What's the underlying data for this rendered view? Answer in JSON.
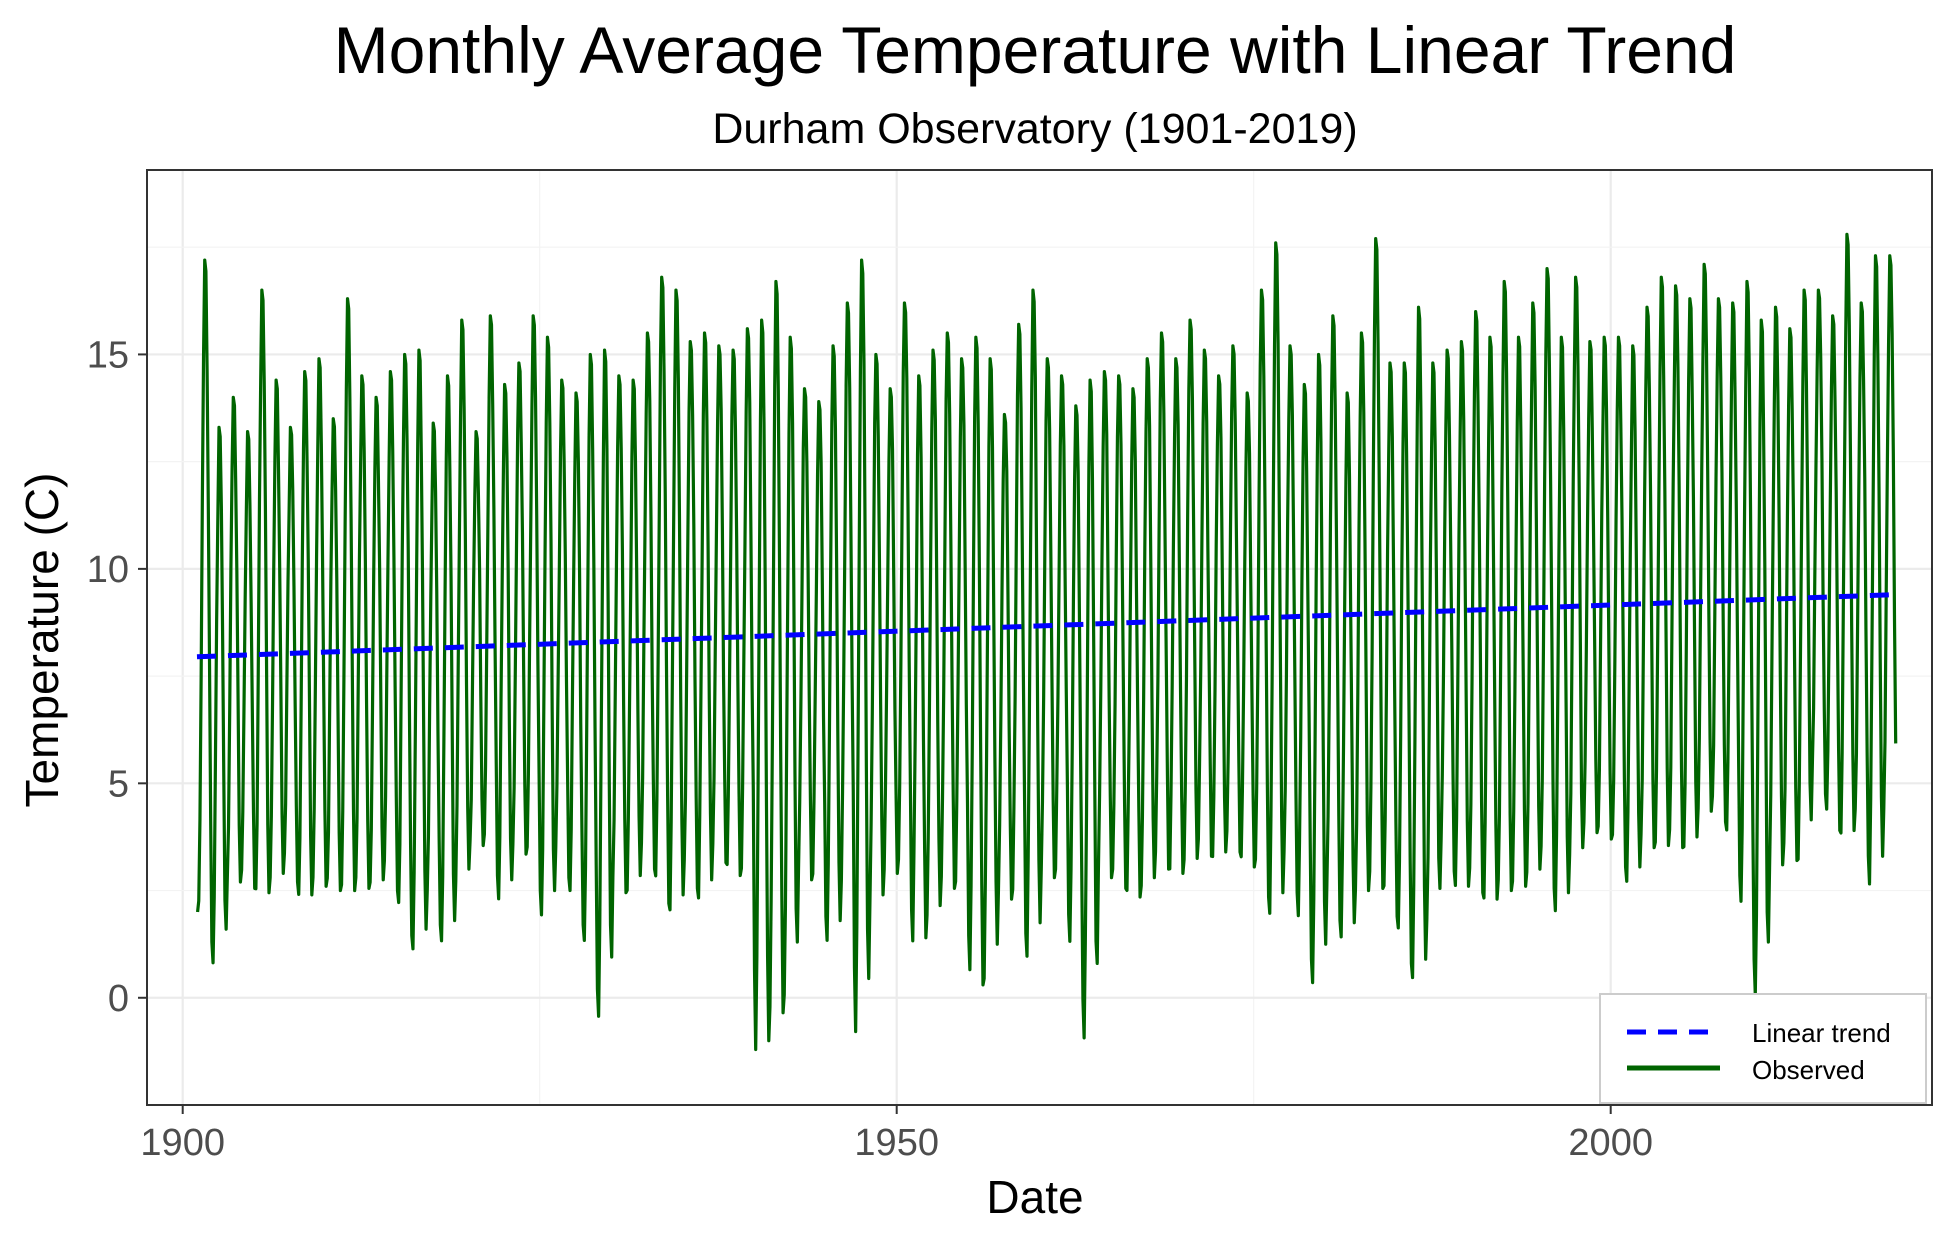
{
  "chart_data": {
    "type": "line",
    "title": "Monthly Average Temperature with Linear Trend",
    "subtitle": "Durham Observatory (1901-2019)",
    "xlabel": "Date",
    "ylabel": "Temperature (C)",
    "xlim": [
      1897.5,
      2022.5
    ],
    "ylim": [
      -2.5,
      19.3
    ],
    "x_ticks": [
      {
        "value": 1900,
        "label": "1900"
      },
      {
        "value": 1950,
        "label": "1950"
      },
      {
        "value": 2000,
        "label": "2000"
      }
    ],
    "y_ticks": [
      {
        "value": 0,
        "label": "0"
      },
      {
        "value": 5,
        "label": "5"
      },
      {
        "value": 10,
        "label": "10"
      },
      {
        "value": 15,
        "label": "15"
      }
    ],
    "grid": true,
    "legend_position": "bottom-right",
    "series": [
      {
        "name": "Linear trend",
        "color": "#0000ff",
        "style": "dashed",
        "x": [
          1901.0,
          2019.9
        ],
        "y": [
          7.95,
          9.4
        ]
      },
      {
        "name": "Observed",
        "color": "#006400",
        "style": "solid",
        "period": "monthly",
        "start": "1901-01",
        "end": "2019-12",
        "annual_extremes": [
          [
            1901,
            2.0,
            17.2
          ],
          [
            1902,
            0.6,
            13.3
          ],
          [
            1903,
            2.6,
            14.0
          ],
          [
            1904,
            2.8,
            13.2
          ],
          [
            1905,
            2.3,
            16.5
          ],
          [
            1906,
            2.6,
            14.4
          ],
          [
            1907,
            3.2,
            13.3
          ],
          [
            1908,
            2.2,
            14.6
          ],
          [
            1909,
            2.6,
            14.9
          ],
          [
            1910,
            2.6,
            13.5
          ],
          [
            1911,
            2.4,
            16.3
          ],
          [
            1912,
            2.6,
            14.5
          ],
          [
            1913,
            2.5,
            14.0
          ],
          [
            1914,
            3.0,
            14.6
          ],
          [
            1915,
            2.0,
            15.0
          ],
          [
            1916,
            0.9,
            15.1
          ],
          [
            1917,
            2.3,
            13.4
          ],
          [
            1918,
            1.1,
            14.5
          ],
          [
            1919,
            2.5,
            15.8
          ],
          [
            1920,
            3.5,
            13.2
          ],
          [
            1921,
            3.6,
            15.9
          ],
          [
            1922,
            2.1,
            14.3
          ],
          [
            1923,
            3.4,
            14.8
          ],
          [
            1924,
            3.3,
            15.9
          ],
          [
            1925,
            1.7,
            15.4
          ],
          [
            1926,
            3.3,
            14.4
          ],
          [
            1927,
            2.3,
            14.1
          ],
          [
            1928,
            1.1,
            15.0
          ],
          [
            1929,
            -0.7,
            15.1
          ],
          [
            1930,
            2.6,
            14.5
          ],
          [
            1931,
            2.3,
            14.4
          ],
          [
            1932,
            3.4,
            15.5
          ],
          [
            1933,
            2.6,
            16.8
          ],
          [
            1934,
            1.8,
            16.5
          ],
          [
            1935,
            3.0,
            15.3
          ],
          [
            1936,
            2.1,
            15.5
          ],
          [
            1937,
            3.4,
            15.2
          ],
          [
            1938,
            2.9,
            15.1
          ],
          [
            1939,
            2.8,
            15.6
          ],
          [
            1940,
            -1.5,
            15.8
          ],
          [
            1941,
            -0.5,
            16.7
          ],
          [
            1942,
            -0.2,
            15.4
          ],
          [
            1943,
            2.8,
            14.2
          ],
          [
            1944,
            2.7,
            13.9
          ],
          [
            1945,
            1.1,
            15.2
          ],
          [
            1946,
            2.5,
            16.2
          ],
          [
            1947,
            -1.1,
            17.2
          ],
          [
            1948,
            2.0,
            15.0
          ],
          [
            1949,
            2.8,
            14.2
          ],
          [
            1950,
            3.0,
            16.2
          ],
          [
            1951,
            1.1,
            14.5
          ],
          [
            1952,
            1.7,
            15.1
          ],
          [
            1953,
            2.6,
            15.5
          ],
          [
            1954,
            2.5,
            14.9
          ],
          [
            1955,
            0.4,
            15.4
          ],
          [
            1956,
            0.2,
            14.9
          ],
          [
            1957,
            2.3,
            13.6
          ],
          [
            1958,
            2.3,
            15.7
          ],
          [
            1959,
            0.7,
            16.5
          ],
          [
            1960,
            2.8,
            14.9
          ],
          [
            1961,
            2.8,
            14.5
          ],
          [
            1962,
            1.1,
            13.8
          ],
          [
            1963,
            -1.2,
            14.4
          ],
          [
            1964,
            2.8,
            14.6
          ],
          [
            1965,
            2.8,
            14.5
          ],
          [
            1966,
            2.3,
            14.2
          ],
          [
            1967,
            2.4,
            14.9
          ],
          [
            1968,
            3.2,
            15.5
          ],
          [
            1969,
            2.8,
            14.9
          ],
          [
            1970,
            3.0,
            15.8
          ],
          [
            1971,
            3.5,
            15.1
          ],
          [
            1972,
            3.1,
            14.5
          ],
          [
            1973,
            3.7,
            15.2
          ],
          [
            1974,
            3.1,
            14.1
          ],
          [
            1975,
            3.0,
            16.5
          ],
          [
            1976,
            1.7,
            17.6
          ],
          [
            1977,
            3.2,
            15.2
          ],
          [
            1978,
            1.7,
            14.3
          ],
          [
            1979,
            0.1,
            15.0
          ],
          [
            1980,
            2.4,
            15.9
          ],
          [
            1981,
            1.2,
            14.1
          ],
          [
            1982,
            2.3,
            15.5
          ],
          [
            1983,
            2.7,
            17.7
          ],
          [
            1984,
            2.4,
            14.8
          ],
          [
            1985,
            1.4,
            14.8
          ],
          [
            1986,
            0.2,
            16.1
          ],
          [
            1987,
            1.6,
            14.8
          ],
          [
            1988,
            3.5,
            15.1
          ],
          [
            1989,
            2.4,
            15.3
          ],
          [
            1990,
            2.8,
            16.0
          ],
          [
            1991,
            2.1,
            15.4
          ],
          [
            1992,
            2.5,
            16.7
          ],
          [
            1993,
            2.5,
            15.4
          ],
          [
            1994,
            2.7,
            16.2
          ],
          [
            1995,
            3.3,
            17.0
          ],
          [
            1996,
            1.8,
            15.4
          ],
          [
            1997,
            3.1,
            16.8
          ],
          [
            1998,
            3.9,
            15.3
          ],
          [
            1999,
            3.8,
            15.4
          ],
          [
            2000,
            3.6,
            15.4
          ],
          [
            2001,
            2.5,
            15.2
          ],
          [
            2002,
            3.6,
            16.1
          ],
          [
            2003,
            3.4,
            16.8
          ],
          [
            2004,
            3.7,
            16.6
          ],
          [
            2005,
            3.3,
            16.3
          ],
          [
            2006,
            4.2,
            17.1
          ],
          [
            2007,
            4.5,
            16.3
          ],
          [
            2008,
            3.7,
            16.2
          ],
          [
            2009,
            2.0,
            16.7
          ],
          [
            2010,
            -0.2,
            15.8
          ],
          [
            2011,
            2.8,
            16.1
          ],
          [
            2012,
            3.4,
            15.6
          ],
          [
            2013,
            3.0,
            16.5
          ],
          [
            2014,
            5.3,
            16.5
          ],
          [
            2015,
            4.2,
            15.9
          ],
          [
            2016,
            3.6,
            17.8
          ],
          [
            2017,
            4.2,
            16.2
          ],
          [
            2018,
            2.4,
            17.3
          ],
          [
            2019,
            4.2,
            17.3
          ]
        ]
      }
    ]
  }
}
